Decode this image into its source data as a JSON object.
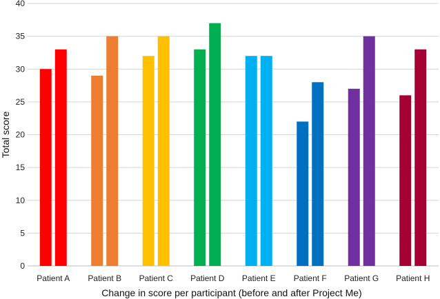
{
  "chart_data": {
    "type": "bar",
    "title": "",
    "xlabel": "Change in score per participant (before and after Project Me)",
    "ylabel": "Total score",
    "ylim": [
      0,
      40
    ],
    "yticks": [
      0,
      5,
      10,
      15,
      20,
      25,
      30,
      35,
      40
    ],
    "grid": true,
    "categories": [
      "Patient A",
      "Patient B",
      "Patient C",
      "Patient D",
      "Patient E",
      "Patient F",
      "Patient G",
      "Patient H"
    ],
    "series": [
      {
        "values": [
          30,
          29,
          32,
          33,
          32,
          22,
          27,
          26
        ]
      },
      {
        "values": [
          33,
          35,
          35,
          37,
          32,
          28,
          35,
          33
        ]
      }
    ],
    "colors": [
      "#ff0000",
      "#ed7d31",
      "#ffc000",
      "#00b050",
      "#00b0f0",
      "#0070c0",
      "#7030a0",
      "#a50034"
    ]
  }
}
